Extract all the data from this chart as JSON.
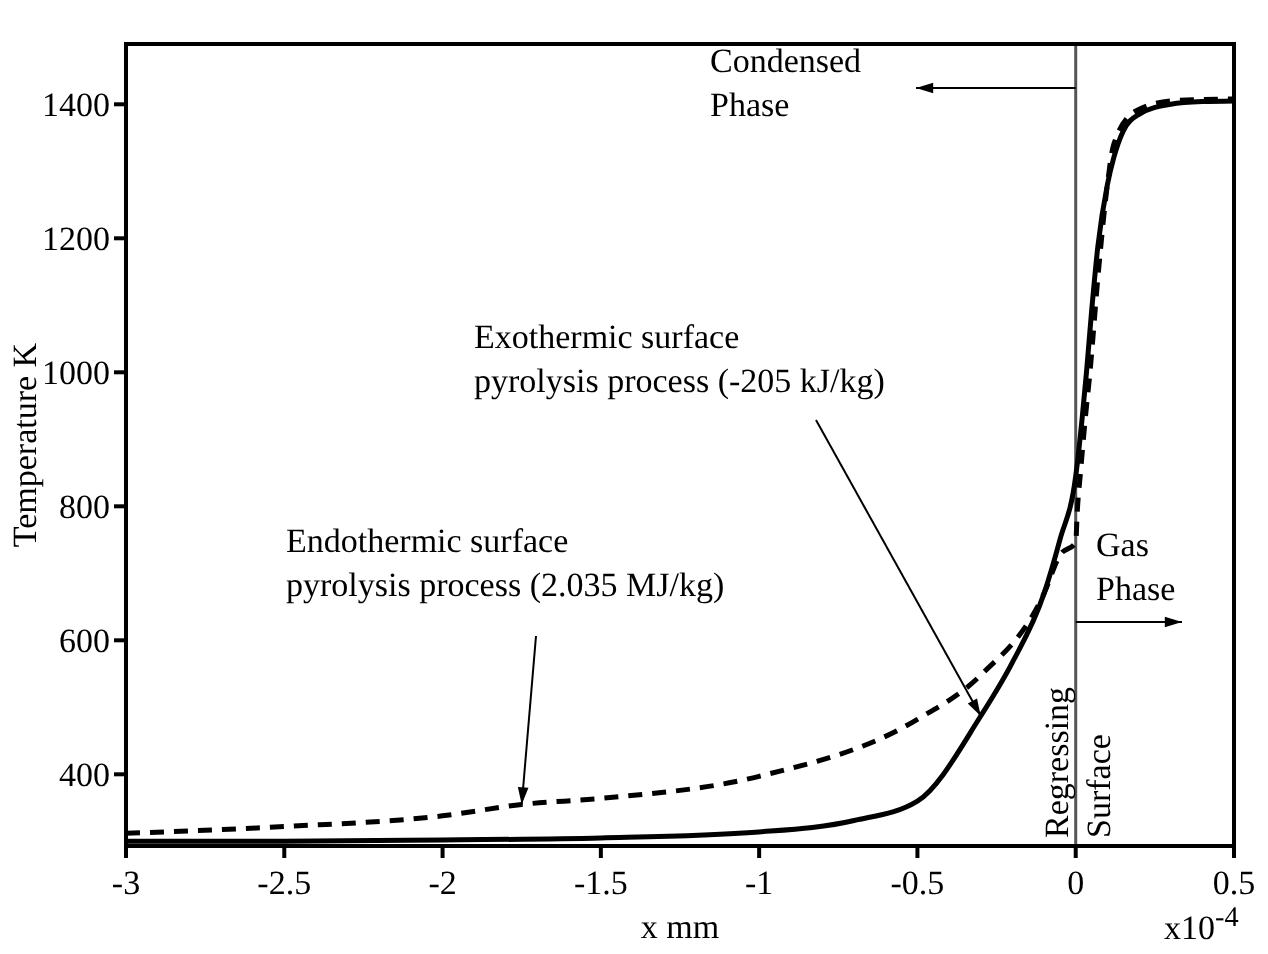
{
  "chart_data": {
    "type": "line",
    "xlabel": "x mm",
    "ylabel": "Temperature K",
    "xlim": [
      -3,
      0.5
    ],
    "xticks": [
      -3,
      -2.5,
      -2,
      -1.5,
      -1,
      -0.5,
      0,
      0.5
    ],
    "ylim": [
      293,
      1490
    ],
    "yticks": [
      400,
      600,
      800,
      1000,
      1200,
      1400
    ],
    "marker": "none",
    "series": [
      {
        "color": "#000000",
        "line_style": "solid",
        "x": [
          -3,
          -2.5,
          -2,
          -1.5,
          -1,
          -0.7,
          -0.5,
          -0.3,
          -0.2,
          -0.1,
          -0.05,
          0,
          0.02,
          0.034,
          0.05,
          0.07,
          0.1,
          0.12,
          0.15,
          0.2,
          0.3,
          0.4,
          0.5
        ],
        "values": [
          300,
          300,
          302,
          305,
          314,
          331,
          360,
          487,
          567,
          670,
          750,
          845,
          930,
          1000,
          1090,
          1188,
          1280,
          1320,
          1360,
          1385,
          1400,
          1404,
          1405
        ]
      },
      {
        "color": "#000000",
        "line_style": "dashed",
        "x": [
          -3,
          -2.5,
          -2,
          -1.75,
          -1.5,
          -1,
          -0.5,
          -0.3,
          -0.1,
          -0.05,
          0,
          0.005,
          0.015,
          0.03,
          0.045,
          0.07,
          0.1,
          0.12,
          0.19,
          0.3,
          0.4,
          0.5
        ],
        "values": [
          312,
          322,
          338,
          355,
          364,
          397,
          482,
          548,
          670,
          727,
          746,
          793,
          850,
          930,
          1000,
          1141,
          1280,
          1340,
          1390,
          1405,
          1407,
          1408
        ]
      }
    ],
    "ref_lines": [
      {
        "axis": "x",
        "value": 0,
        "label": "Regressing Surface",
        "color": "#555555"
      }
    ],
    "annotations": [
      {
        "text": "Exothermic surface pyrolysis process (-205 kJ/kg)",
        "x": -0.3,
        "y": 487
      },
      {
        "text": "Endothermic surface pyrolysis process (2.035 MJ/kg)",
        "x": -1.75,
        "y": 355
      },
      "Condensed Phase",
      "Gas Phase",
      "x10$^{-4}$"
    ]
  }
}
